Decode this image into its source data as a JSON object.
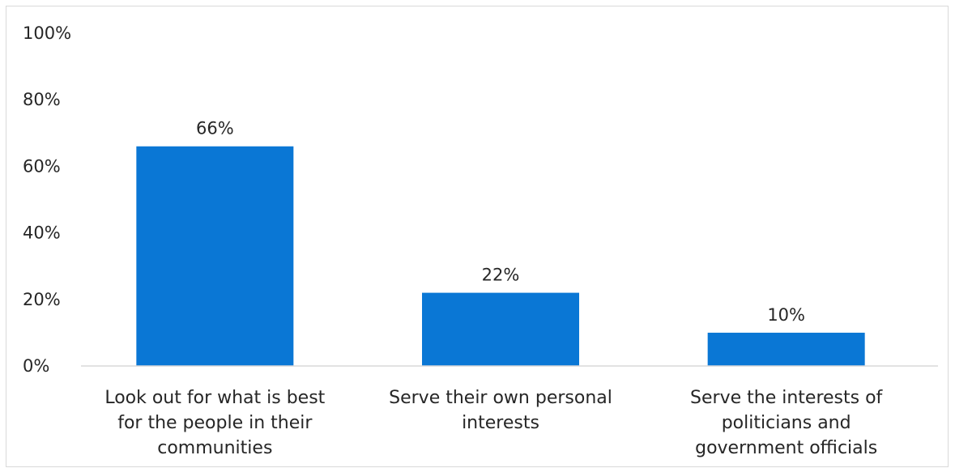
{
  "chart_data": {
    "type": "bar",
    "title": "",
    "xlabel": "",
    "ylabel": "",
    "ylim": [
      0,
      100
    ],
    "yticks": [
      0,
      20,
      40,
      60,
      80,
      100
    ],
    "ytick_labels": [
      "0%",
      "20%",
      "40%",
      "60%",
      "80%",
      "100%"
    ],
    "grid": false,
    "legend": "none",
    "categories": [
      [
        "Look out for what is best",
        "for the people in their",
        "communities"
      ],
      [
        "Serve their own personal",
        "interests"
      ],
      [
        "Serve the interests of",
        "politicians and",
        "government officials"
      ]
    ],
    "values": [
      66,
      22,
      10
    ],
    "data_labels": [
      "66%",
      "22%",
      "10%"
    ],
    "bar_color": "#0a77d5"
  }
}
